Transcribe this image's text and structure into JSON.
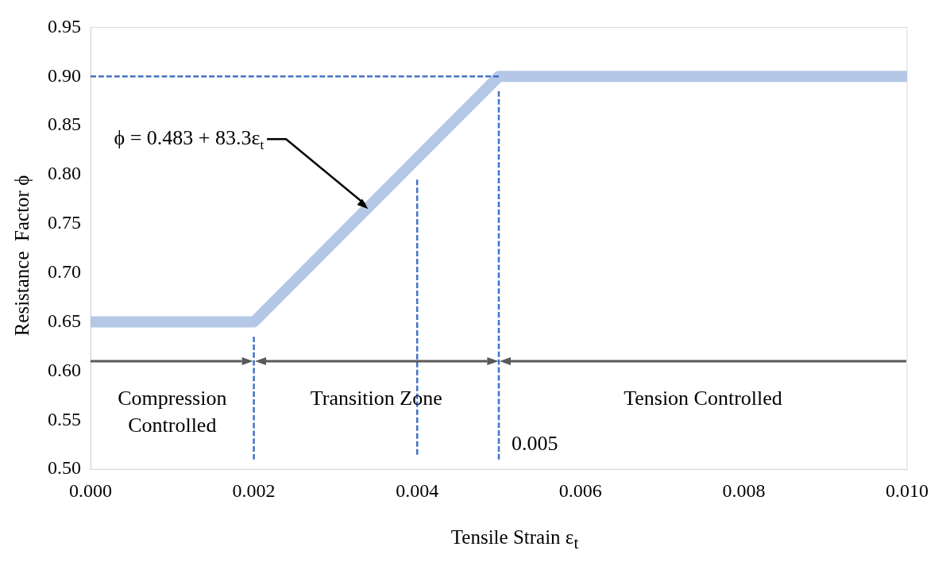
{
  "chart_data": {
    "type": "line",
    "xlabel": "Tensile Strain ε$_{t}$",
    "ylabel": "Resistance  Factor ϕ",
    "xlim": [
      0,
      0.01
    ],
    "xticks": [
      {
        "value": 0,
        "label": "0.000"
      },
      {
        "value": 0.002,
        "label": "0.002"
      },
      {
        "value": 0.004,
        "label": "0.004"
      },
      {
        "value": 0.006,
        "label": "0.006"
      },
      {
        "value": 0.008,
        "label": "0.008"
      },
      {
        "value": 0.01,
        "label": "0.010"
      }
    ],
    "ylim": [
      0.5,
      0.95
    ],
    "yticks": [
      {
        "value": 0.5,
        "label": "0.50"
      },
      {
        "value": 0.55,
        "label": "0.55"
      },
      {
        "value": 0.6,
        "label": "0.60"
      },
      {
        "value": 0.65,
        "label": "0.65"
      },
      {
        "value": 0.7,
        "label": "0.70"
      },
      {
        "value": 0.75,
        "label": "0.75"
      },
      {
        "value": 0.8,
        "label": "0.80"
      },
      {
        "value": 0.85,
        "label": "0.85"
      },
      {
        "value": 0.9,
        "label": "0.90"
      },
      {
        "value": 0.95,
        "label": "0.95"
      }
    ],
    "grid": false,
    "legend": false,
    "marker": "none",
    "series": [
      {
        "color": "#b4c7e7",
        "x": [
          0,
          0.002,
          0.005,
          0.01
        ],
        "values": [
          0.65,
          0.65,
          0.9,
          0.9
        ]
      },
      {
        "color": "#4472c4",
        "line_style": "dashed",
        "x": [
          0,
          0.005
        ],
        "values": [
          0.9,
          0.9
        ]
      },
      {
        "color": "#4472c4",
        "line_style": "dashed",
        "x": [
          0.002,
          0.002
        ],
        "values": [
          0.51,
          0.635
        ]
      },
      {
        "color": "#4472c4",
        "line_style": "dashed",
        "x": [
          0.004,
          0.004
        ],
        "values": [
          0.515,
          0.795
        ]
      },
      {
        "color": "#4472c4",
        "line_style": "dashed",
        "x": [
          0.005,
          0.005
        ],
        "values": [
          0.51,
          0.885
        ]
      }
    ],
    "annotations": [
      {
        "text": "ϕ = 0.483 + 83.3ε$_{t}$",
        "x": 0.0034,
        "y": 0.765
      },
      {
        "text": "0.005",
        "x": 0.005,
        "y": 0.525
      },
      "Compression\nControlled",
      "Transition Zone",
      "Tension Controlled"
    ]
  }
}
